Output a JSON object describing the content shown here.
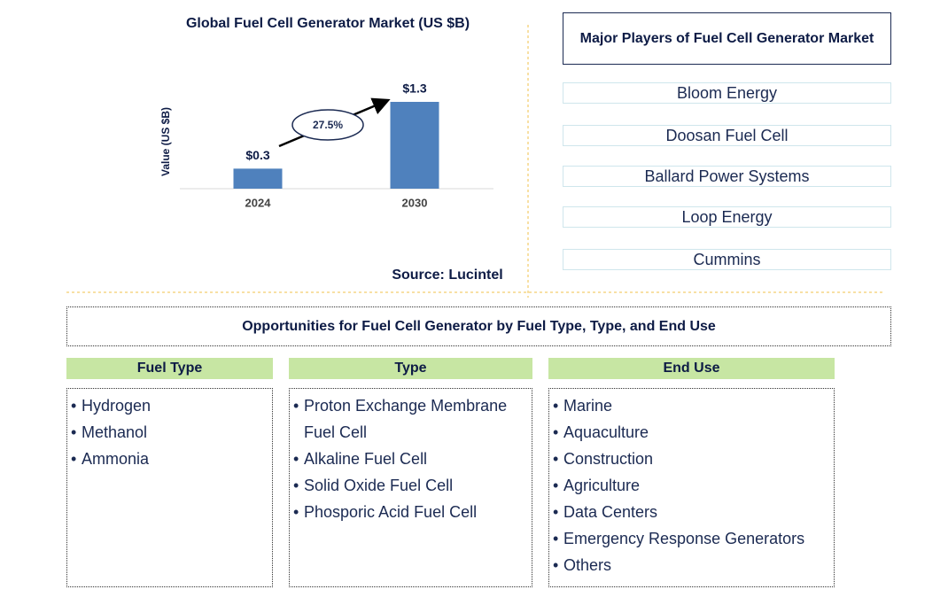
{
  "chart_data": {
    "type": "bar",
    "title": "Global Fuel Cell Generator Market (US $B)",
    "y_label": "Value (US $B)",
    "categories": [
      "2024",
      "2030"
    ],
    "values": [
      0.3,
      1.3
    ],
    "value_labels": [
      "$0.3",
      "$1.3"
    ],
    "color": "#4f81bd",
    "ylim": [
      0,
      1.3
    ],
    "growth_label": "27.5%",
    "source": "Source: Lucintel"
  },
  "players": {
    "title": "Major Players of Fuel Cell Generator Market",
    "items": [
      "Bloom Energy",
      "Doosan Fuel Cell",
      "Ballard Power Systems",
      "Loop Energy",
      "Cummins"
    ]
  },
  "opportunities": {
    "title": "Opportunities for Fuel Cell Generator by Fuel Type, Type, and End Use",
    "columns": [
      {
        "header": "Fuel Type",
        "items": [
          "Hydrogen",
          "Methanol",
          "Ammonia"
        ]
      },
      {
        "header": "Type",
        "items": [
          "Proton Exchange Membrane Fuel Cell",
          "Alkaline Fuel Cell",
          "Solid Oxide Fuel Cell",
          "Phosporic Acid Fuel Cell"
        ]
      },
      {
        "header": "End Use",
        "items": [
          "Marine",
          "Aquaculture",
          "Construction",
          "Agriculture",
          "Data Centers",
          "Emergency Response Generators",
          "Others"
        ]
      }
    ]
  }
}
